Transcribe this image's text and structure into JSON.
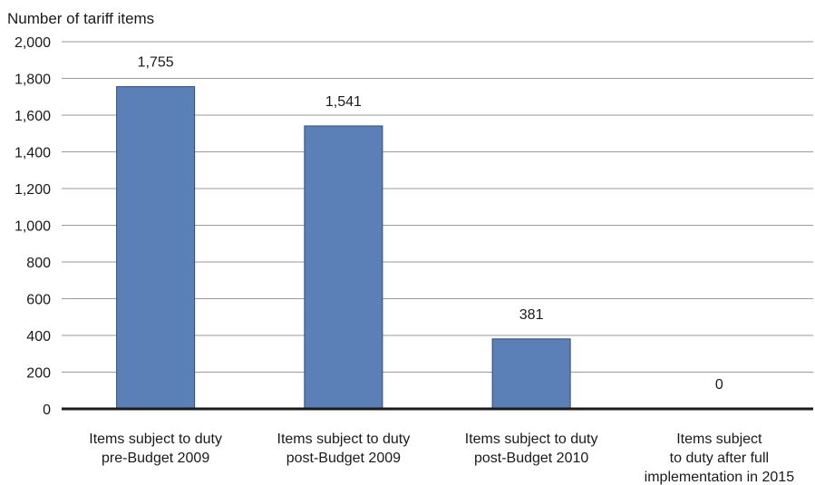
{
  "chart_data": {
    "type": "bar",
    "ylabel": "Number of tariff items",
    "categories": [
      [
        "Items subject to duty",
        "pre-Budget 2009"
      ],
      [
        "Items subject to duty",
        "post-Budget 2009"
      ],
      [
        "Items subject to duty",
        "post-Budget 2010"
      ],
      [
        "Items subject",
        "to duty after full",
        "implementation in 2015"
      ]
    ],
    "values": [
      1755,
      1541,
      381,
      0
    ],
    "data_labels": [
      "1,755",
      "1,541",
      "381",
      "0"
    ],
    "ylim": [
      0,
      2000
    ],
    "yticks": [
      0,
      200,
      400,
      600,
      800,
      1000,
      1200,
      1400,
      1600,
      1800,
      2000
    ],
    "ytick_labels": [
      "0",
      "200",
      "400",
      "600",
      "800",
      "1,000",
      "1,200",
      "1,400",
      "1,600",
      "1,800",
      "2,000"
    ],
    "grid": true,
    "bar_color": "#5b80b8",
    "bar_edge_color": "#2c4a78"
  }
}
